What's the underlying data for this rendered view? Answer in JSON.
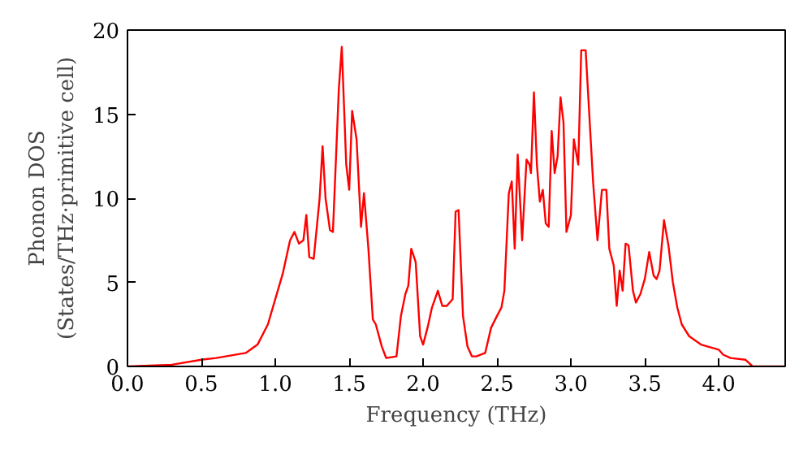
{
  "chart_data": {
    "type": "line",
    "xlabel": "Frequency (THz)",
    "ylabel": "Phonon DOS\n(States/THz·primitive cell)",
    "xlim": [
      0,
      4.45
    ],
    "ylim": [
      0,
      20
    ],
    "xticks": [
      {
        "value": 0,
        "label": "0.0"
      },
      0.5,
      {
        "value": 1,
        "label": "1.0"
      },
      1.5,
      {
        "value": 2,
        "label": "2.0"
      },
      2.5,
      {
        "value": 3,
        "label": "3.0"
      },
      3.5,
      {
        "value": 4,
        "label": "4.0"
      }
    ],
    "yticks": [
      0,
      5,
      10,
      15,
      20
    ],
    "grid": false,
    "series": [
      {
        "color": "#ff0000",
        "x": [
          0,
          0.3,
          0.5,
          0.6,
          0.8,
          0.88,
          0.95,
          1.0,
          1.05,
          1.1,
          1.13,
          1.16,
          1.19,
          1.21,
          1.23,
          1.26,
          1.3,
          1.32,
          1.34,
          1.37,
          1.39,
          1.43,
          1.45,
          1.48,
          1.5,
          1.52,
          1.55,
          1.58,
          1.6,
          1.63,
          1.66,
          1.68,
          1.72,
          1.75,
          1.82,
          1.85,
          1.88,
          1.9,
          1.92,
          1.95,
          1.98,
          2.0,
          2.03,
          2.06,
          2.1,
          2.13,
          2.16,
          2.2,
          2.22,
          2.24,
          2.27,
          2.3,
          2.33,
          2.36,
          2.42,
          2.46,
          2.5,
          2.53,
          2.55,
          2.58,
          2.6,
          2.62,
          2.64,
          2.67,
          2.7,
          2.72,
          2.73,
          2.75,
          2.77,
          2.79,
          2.81,
          2.83,
          2.85,
          2.87,
          2.89,
          2.91,
          2.93,
          2.95,
          2.97,
          3.0,
          3.02,
          3.05,
          3.07,
          3.1,
          3.15,
          3.18,
          3.21,
          3.24,
          3.26,
          3.29,
          3.31,
          3.33,
          3.35,
          3.37,
          3.39,
          3.42,
          3.44,
          3.47,
          3.5,
          3.53,
          3.56,
          3.58,
          3.6,
          3.63,
          3.66,
          3.69,
          3.72,
          3.75,
          3.8,
          3.88,
          4.0,
          4.03,
          4.08,
          4.18,
          4.23,
          4.45
        ],
        "values": [
          0,
          0.1,
          0.4,
          0.5,
          0.8,
          1.3,
          2.5,
          4.0,
          5.5,
          7.5,
          8,
          7.3,
          7.5,
          9.0,
          6.5,
          6.4,
          10,
          13.1,
          10,
          8.1,
          8,
          16.5,
          19,
          12,
          10.5,
          15.2,
          13.5,
          8.3,
          10.3,
          7,
          2.8,
          2.5,
          1.2,
          0.5,
          0.6,
          3,
          4.3,
          4.8,
          7,
          6.2,
          1.8,
          1.3,
          2.3,
          3.5,
          4.5,
          3.6,
          3.6,
          4,
          9.2,
          9.3,
          3,
          1.2,
          0.6,
          0.6,
          0.8,
          2.3,
          3,
          3.5,
          4.5,
          10.3,
          11,
          7,
          12.6,
          7.5,
          12.3,
          12,
          11.5,
          16.3,
          12,
          9.8,
          10.5,
          8.5,
          8.3,
          14,
          11.5,
          12.5,
          16,
          14.5,
          8,
          9,
          13.5,
          12,
          18.8,
          18.8,
          11,
          7.5,
          10.5,
          10.5,
          7,
          6,
          3.6,
          5.7,
          4.5,
          7.3,
          7.2,
          4.5,
          3.8,
          4.3,
          5.2,
          6.8,
          5.4,
          5.2,
          5.7,
          8.7,
          7.2,
          5,
          3.5,
          2.5,
          1.8,
          1.3,
          1,
          0.7,
          0.5,
          0.4,
          0,
          0
        ]
      }
    ]
  }
}
